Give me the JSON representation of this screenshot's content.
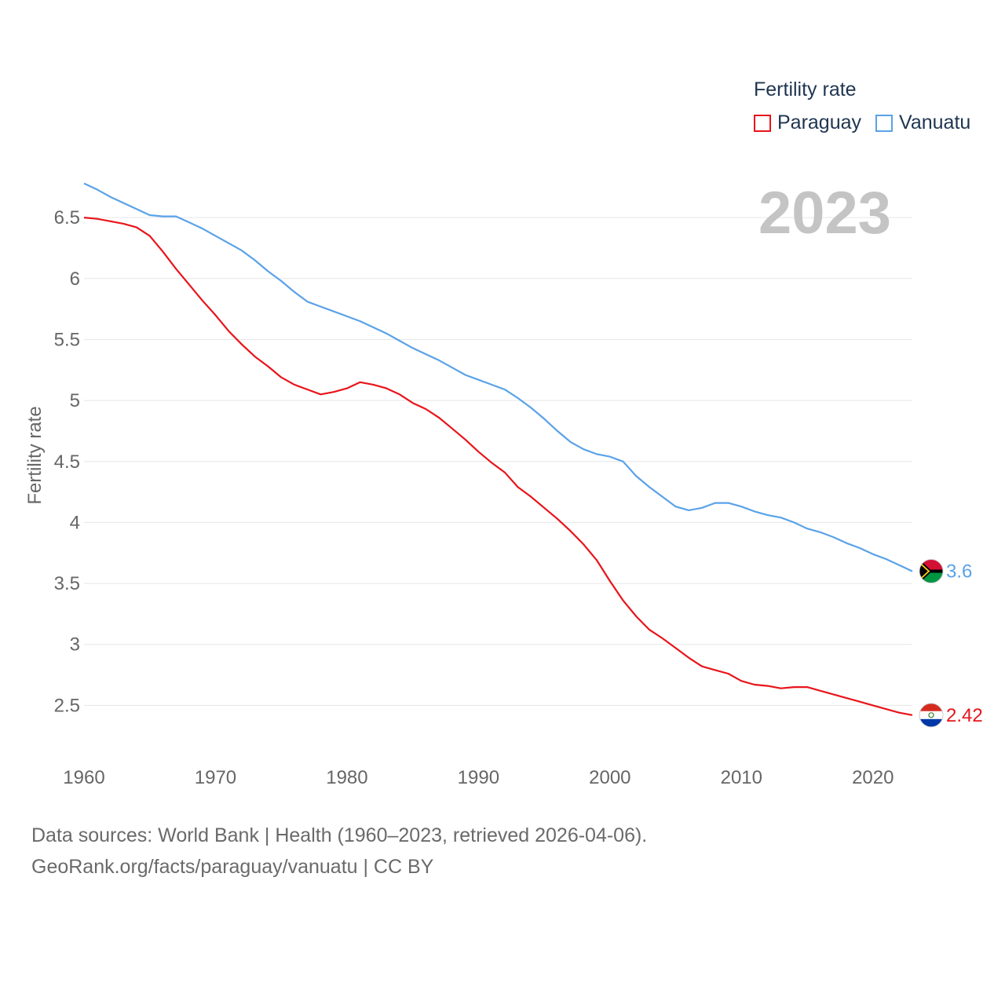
{
  "legend": {
    "title": "Fertility rate",
    "items": [
      {
        "label": "Paraguay",
        "color": "#e8141a"
      },
      {
        "label": "Vanuatu",
        "color": "#5aa2e8"
      }
    ]
  },
  "year_label": "2023",
  "footer": {
    "line1": "Data sources: World Bank | Health (1960–2023, retrieved 2026-04-06).",
    "line2": "GeoRank.org/facts/paraguay/vanuatu | CC BY"
  },
  "chart_data": {
    "type": "line",
    "ylabel": "Fertility rate",
    "xlabel": "",
    "xlim": [
      1960,
      2023
    ],
    "ylim": [
      2.2,
      6.9
    ],
    "xticks": [
      1960,
      1970,
      1980,
      1990,
      2000,
      2010,
      2020
    ],
    "yticks": [
      2.5,
      3,
      3.5,
      4,
      4.5,
      5,
      5.5,
      6,
      6.5
    ],
    "ytick_labels": [
      "2.5",
      "3",
      "3.5",
      "4",
      "4.5",
      "5",
      "5.5",
      "6",
      "6.5"
    ],
    "x": [
      1960,
      1961,
      1962,
      1963,
      1964,
      1965,
      1966,
      1967,
      1968,
      1969,
      1970,
      1971,
      1972,
      1973,
      1974,
      1975,
      1976,
      1977,
      1978,
      1979,
      1980,
      1981,
      1982,
      1983,
      1984,
      1985,
      1986,
      1987,
      1988,
      1989,
      1990,
      1991,
      1992,
      1993,
      1994,
      1995,
      1996,
      1997,
      1998,
      1999,
      2000,
      2001,
      2002,
      2003,
      2004,
      2005,
      2006,
      2007,
      2008,
      2009,
      2010,
      2011,
      2012,
      2013,
      2014,
      2015,
      2016,
      2017,
      2018,
      2019,
      2020,
      2021,
      2022,
      2023
    ],
    "series": [
      {
        "name": "Paraguay",
        "color": "#e8141a",
        "end_label": "2.42",
        "values": [
          6.5,
          6.49,
          6.47,
          6.45,
          6.42,
          6.35,
          6.22,
          6.08,
          5.95,
          5.82,
          5.7,
          5.57,
          5.46,
          5.36,
          5.28,
          5.19,
          5.13,
          5.09,
          5.05,
          5.07,
          5.1,
          5.15,
          5.13,
          5.1,
          5.05,
          4.98,
          4.93,
          4.86,
          4.77,
          4.68,
          4.58,
          4.49,
          4.41,
          4.29,
          4.21,
          4.12,
          4.03,
          3.93,
          3.82,
          3.69,
          3.52,
          3.36,
          3.23,
          3.12,
          3.05,
          2.97,
          2.89,
          2.82,
          2.79,
          2.76,
          2.7,
          2.67,
          2.66,
          2.64,
          2.65,
          2.65,
          2.62,
          2.59,
          2.56,
          2.53,
          2.5,
          2.47,
          2.44,
          2.42
        ]
      },
      {
        "name": "Vanuatu",
        "color": "#5aa2e8",
        "end_label": "3.6",
        "values": [
          6.78,
          6.73,
          6.67,
          6.62,
          6.57,
          6.52,
          6.51,
          6.51,
          6.46,
          6.41,
          6.35,
          6.29,
          6.23,
          6.15,
          6.06,
          5.98,
          5.89,
          5.81,
          5.77,
          5.73,
          5.69,
          5.65,
          5.6,
          5.55,
          5.49,
          5.43,
          5.38,
          5.33,
          5.27,
          5.21,
          5.17,
          5.13,
          5.09,
          5.02,
          4.94,
          4.85,
          4.75,
          4.66,
          4.6,
          4.56,
          4.54,
          4.5,
          4.38,
          4.29,
          4.21,
          4.13,
          4.1,
          4.12,
          4.16,
          4.16,
          4.13,
          4.09,
          4.06,
          4.04,
          4.0,
          3.95,
          3.92,
          3.88,
          3.83,
          3.79,
          3.74,
          3.7,
          3.65,
          3.6
        ]
      }
    ]
  }
}
